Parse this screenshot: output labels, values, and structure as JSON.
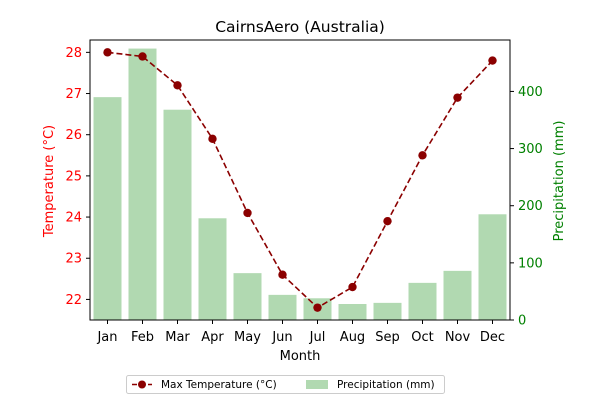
{
  "chart_data": {
    "type": "bar+line",
    "title": "CairnsAero (Australia)",
    "xlabel": "Month",
    "categories": [
      "Jan",
      "Feb",
      "Mar",
      "Apr",
      "May",
      "Jun",
      "Jul",
      "Aug",
      "Sep",
      "Oct",
      "Nov",
      "Dec"
    ],
    "temperature": {
      "name": "Max Temperature (°C)",
      "axis_label": "Temperature (°C)",
      "values": [
        28.0,
        27.9,
        27.2,
        25.9,
        24.1,
        22.6,
        21.8,
        22.3,
        23.9,
        25.5,
        26.9,
        27.8
      ],
      "ylim": [
        21.5,
        28.3
      ],
      "ticks": [
        22,
        23,
        24,
        25,
        26,
        27,
        28
      ],
      "color": "#8b0000",
      "axis_color": "#ff0000"
    },
    "precipitation": {
      "name": "Precipitation (mm)",
      "axis_label": "Precipitation (mm)",
      "values": [
        390,
        475,
        368,
        178,
        82,
        44,
        38,
        28,
        30,
        65,
        86,
        185
      ],
      "ylim": [
        0,
        490
      ],
      "ticks": [
        0,
        100,
        200,
        300,
        400
      ],
      "color": "#b1d9b1",
      "axis_color": "#008000"
    },
    "legend_position": "bottom-center",
    "grid": false
  }
}
